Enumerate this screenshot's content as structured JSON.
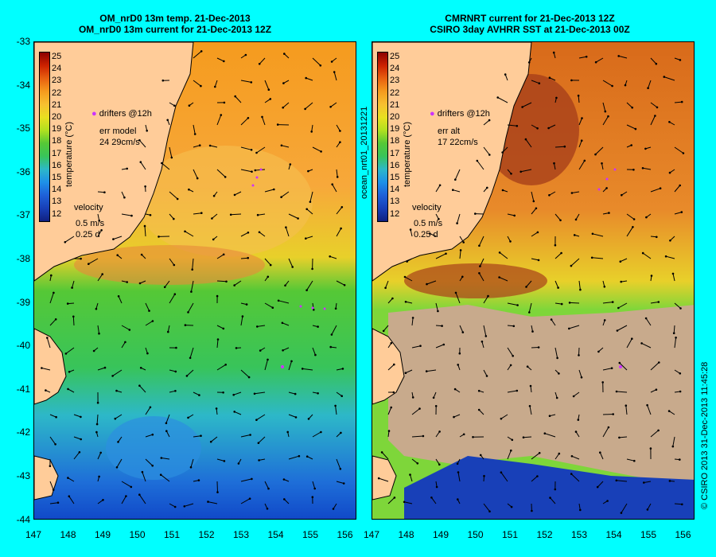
{
  "left_panel": {
    "title_line1": "OM_nrD0 13m temp. 21-Dec-2013",
    "title_line2": "OM_nrD0 13m current for 21-Dec-2013 12Z",
    "drifters": "drifters @12h",
    "err_label": "err model",
    "err_values": "24 29cm/s",
    "velocity_label": "velocity",
    "velocity_scale": "0.5 m/s",
    "velocity_time": "0.25 d"
  },
  "right_panel": {
    "title_line1": "CMRNRT current for 21-Dec-2013 12Z",
    "title_line2": "CSIRO 3day AVHRR SST at 21-Dec-2013 00Z",
    "drifters": "drifters @12h",
    "err_label": "err alt",
    "err_values": "17 22cm/s",
    "velocity_label": "velocity",
    "velocity_scale": "0.5 m/s",
    "velocity_time": "0.25 d",
    "side_label": "ocean_nrt01_20131221"
  },
  "colorbar": {
    "label": "temperature (°C)",
    "ticks": [
      "25",
      "24",
      "23",
      "22",
      "21",
      "20",
      "19",
      "18",
      "17",
      "16",
      "15",
      "14",
      "13",
      "12"
    ]
  },
  "axes": {
    "y_ticks": [
      "-33",
      "-34",
      "-35",
      "-36",
      "-37",
      "-38",
      "-39",
      "-40",
      "-41",
      "-42",
      "-43",
      "-44"
    ],
    "x_ticks": [
      "147",
      "148",
      "149",
      "150",
      "151",
      "152",
      "153",
      "154",
      "155",
      "156"
    ]
  },
  "footer": "© CSIRO 2013   31-Dec-2013 11:45:28",
  "colors": {
    "background": "#00FFFF",
    "land": "#FFCC99",
    "cloud": "#C8AA8C"
  }
}
